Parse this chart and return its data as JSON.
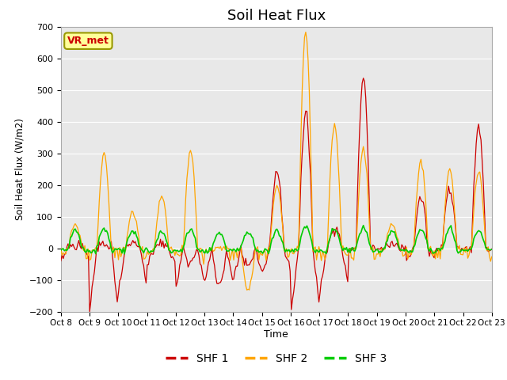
{
  "title": "Soil Heat Flux",
  "ylabel": "Soil Heat Flux (W/m2)",
  "xlabel": "Time",
  "ylim": [
    -200,
    700
  ],
  "yticks": [
    -200,
    -100,
    0,
    100,
    200,
    300,
    400,
    500,
    600,
    700
  ],
  "x_labels": [
    "Oct 8",
    "Oct 9",
    "Oct 10",
    "Oct 11",
    "Oct 12",
    "Oct 13",
    "Oct 14",
    "Oct 15",
    "Oct 16",
    "Oct 17",
    "Oct 18",
    "Oct 19",
    "Oct 20",
    "Oct 21",
    "Oct 22",
    "Oct 23"
  ],
  "shf1_color": "#cc0000",
  "shf2_color": "#ffa500",
  "shf3_color": "#00cc00",
  "legend_labels": [
    "SHF 1",
    "SHF 2",
    "SHF 3"
  ],
  "annotation_text": "VR_met",
  "annotation_fontsize": 9,
  "title_fontsize": 13,
  "fig_bg": "#ffffff",
  "plot_bg": "#e8e8e8",
  "grid_color": "#ffffff",
  "spine_color": "#aaaaaa"
}
